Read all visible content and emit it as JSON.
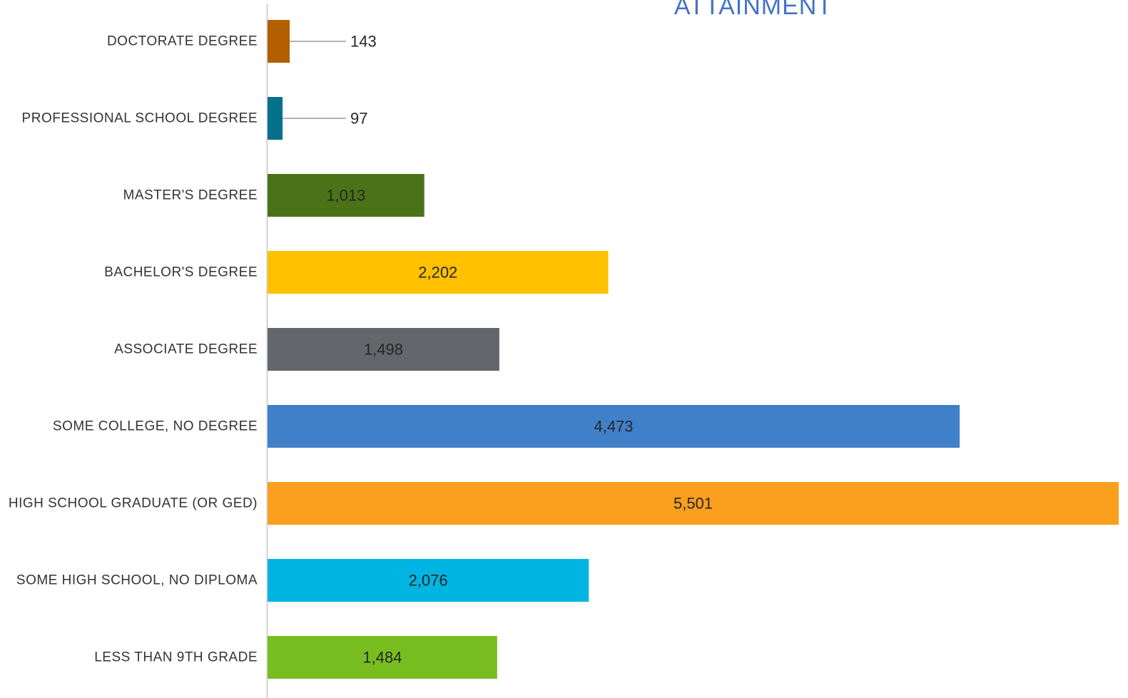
{
  "chart_data": {
    "type": "bar",
    "orientation": "horizontal",
    "title": "ATTAINMENT",
    "categories": [
      "DOCTORATE DEGREE",
      "PROFESSIONAL SCHOOL DEGREE",
      "MASTER'S DEGREE",
      "BACHELOR'S DEGREE",
      "ASSOCIATE DEGREE",
      "SOME COLLEGE, NO DEGREE",
      "HIGH SCHOOL GRADUATE (OR GED)",
      "SOME HIGH SCHOOL, NO DIPLOMA",
      "LESS THAN 9TH GRADE"
    ],
    "values": [
      143,
      97,
      1013,
      2202,
      1498,
      4473,
      5501,
      2076,
      1484
    ],
    "value_labels": [
      "143",
      "97",
      "1,013",
      "2,202",
      "1,498",
      "4,473",
      "5,501",
      "2,076",
      "1,484"
    ],
    "colors": [
      "#b35f00",
      "#05708a",
      "#4a7317",
      "#ffc000",
      "#63666a",
      "#4080c8",
      "#fb9f1f",
      "#00b5e2",
      "#78be20"
    ],
    "xlim": [
      0,
      5501
    ],
    "grid": false,
    "legend": "none"
  }
}
